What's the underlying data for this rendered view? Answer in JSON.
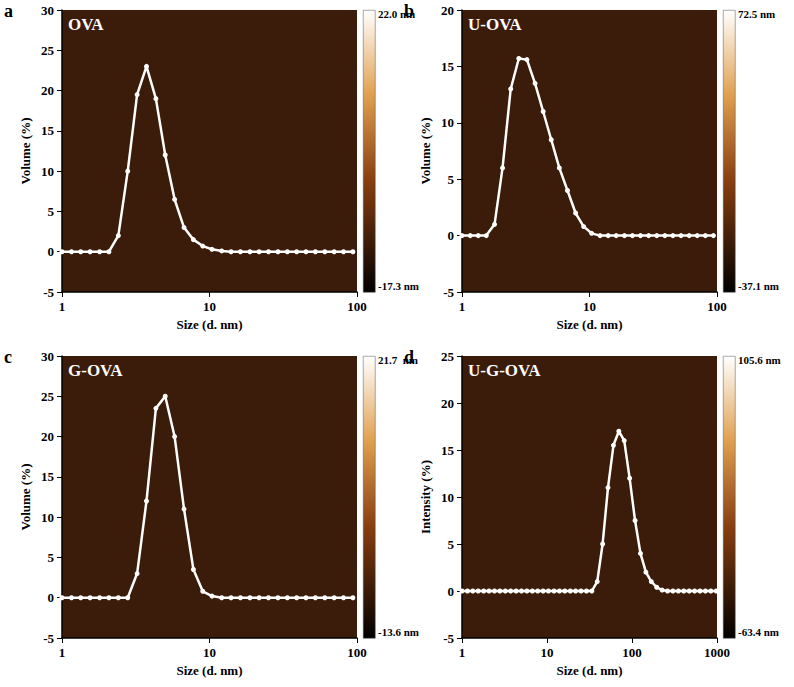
{
  "chart_data": [
    {
      "type": "line",
      "panel": "a",
      "title": "OVA",
      "x_label": "Size (d. nm)",
      "y_label": "Volume (%)",
      "log": "x",
      "grid": false,
      "xlim": [
        1,
        100
      ],
      "xticks": [
        1,
        10,
        100
      ],
      "ylim": [
        -5,
        30
      ],
      "yticks": [
        -5,
        0,
        5,
        10,
        15,
        20,
        25,
        30
      ],
      "x": [
        1.0,
        1.16,
        1.34,
        1.55,
        1.8,
        2.08,
        2.41,
        2.79,
        3.23,
        3.74,
        4.33,
        5.01,
        5.8,
        6.72,
        7.78,
        9.0,
        10.4,
        12.1,
        14.0,
        16.2,
        18.8,
        21.7,
        25.1,
        29.1,
        33.7,
        39.0,
        45.1,
        52.2,
        60.5,
        70.0,
        81.0,
        93.8
      ],
      "series": [
        {
          "color": "#ffffff",
          "marker": "circle",
          "values": [
            0,
            0,
            0,
            0,
            0,
            0,
            2,
            10,
            19.5,
            23,
            19,
            12,
            6.5,
            3,
            1.5,
            0.7,
            0.3,
            0.1,
            0,
            0,
            0,
            0,
            0,
            0,
            0,
            0,
            0,
            0,
            0,
            0,
            0,
            0
          ]
        }
      ],
      "colorbar": {
        "range": [
          -17.3,
          22.0
        ],
        "ticks": [
          {
            "value": 22.0,
            "label": "22.0 nm"
          },
          {
            "value": -17.3,
            "label": "-17.3 nm"
          }
        ]
      }
    },
    {
      "type": "line",
      "panel": "b",
      "title": "U-OVA",
      "x_label": "Size (d. nm)",
      "y_label": "Volume (%)",
      "log": "x",
      "grid": false,
      "xlim": [
        1,
        100
      ],
      "xticks": [
        1,
        10,
        100
      ],
      "ylim": [
        -5,
        20
      ],
      "yticks": [
        -5,
        0,
        5,
        10,
        15,
        20
      ],
      "x": [
        1.0,
        1.16,
        1.34,
        1.55,
        1.8,
        2.08,
        2.41,
        2.79,
        3.23,
        3.74,
        4.33,
        5.01,
        5.8,
        6.72,
        7.78,
        9.0,
        10.4,
        12.1,
        14.0,
        16.2,
        18.8,
        21.7,
        25.1,
        29.1,
        33.7,
        39.0,
        45.1,
        52.2,
        60.5,
        70.0,
        81.0,
        93.8
      ],
      "series": [
        {
          "color": "#ffffff",
          "marker": "circle",
          "values": [
            0,
            0,
            0,
            0,
            1,
            6,
            13,
            15.7,
            15.6,
            13.5,
            11,
            8.5,
            6,
            4,
            2,
            0.8,
            0.2,
            0,
            0,
            0,
            0,
            0,
            0,
            0,
            0,
            0,
            0,
            0,
            0,
            0,
            0,
            0
          ]
        }
      ],
      "colorbar": {
        "range": [
          -37.1,
          72.5
        ],
        "ticks": [
          {
            "value": 72.5,
            "label": "72.5 nm"
          },
          {
            "value": -37.1,
            "label": "-37.1 nm"
          }
        ]
      }
    },
    {
      "type": "line",
      "panel": "c",
      "title": "G-OVA",
      "x_label": "Size (d. nm)",
      "y_label": "Volume (%)",
      "log": "x",
      "grid": false,
      "xlim": [
        1,
        100
      ],
      "xticks": [
        1,
        10,
        100
      ],
      "ylim": [
        -5,
        30
      ],
      "yticks": [
        -5,
        0,
        5,
        10,
        15,
        20,
        25,
        30
      ],
      "x": [
        1.0,
        1.16,
        1.34,
        1.55,
        1.8,
        2.08,
        2.41,
        2.79,
        3.23,
        3.74,
        4.33,
        5.01,
        5.8,
        6.72,
        7.78,
        9.0,
        10.4,
        12.1,
        14.0,
        16.2,
        18.8,
        21.7,
        25.1,
        29.1,
        33.7,
        39.0,
        45.1,
        52.2,
        60.5,
        70.0,
        81.0,
        93.8
      ],
      "series": [
        {
          "color": "#ffffff",
          "marker": "circle",
          "values": [
            0,
            0,
            0,
            0,
            0,
            0,
            0,
            0,
            3,
            12,
            23.5,
            25,
            20,
            11,
            3.5,
            0.8,
            0.2,
            0,
            0,
            0,
            0,
            0,
            0,
            0,
            0,
            0,
            0,
            0,
            0,
            0,
            0,
            0
          ]
        }
      ],
      "colorbar": {
        "range": [
          -13.6,
          21.7
        ],
        "ticks": [
          {
            "value": 21.7,
            "label": "21.7  nm"
          },
          {
            "value": -13.6,
            "label": "-13.6 nm"
          }
        ]
      }
    },
    {
      "type": "line",
      "panel": "d",
      "title": "U-G-OVA",
      "x_label": "Size (d. nm)",
      "y_label": "Intensity (%)",
      "log": "x",
      "grid": false,
      "xlim": [
        1,
        1000
      ],
      "xticks": [
        1,
        10,
        100,
        1000
      ],
      "ylim": [
        -5,
        25
      ],
      "yticks": [
        -5,
        0,
        5,
        10,
        15,
        20,
        25
      ],
      "x": [
        1.0,
        1.16,
        1.34,
        1.55,
        1.8,
        2.08,
        2.41,
        2.79,
        3.23,
        3.74,
        4.33,
        5.01,
        5.8,
        6.72,
        7.78,
        9.0,
        10.4,
        12.1,
        14.0,
        16.2,
        18.8,
        21.7,
        25.1,
        29.1,
        33.7,
        39.0,
        45.1,
        52.2,
        60.5,
        70.0,
        81.0,
        93.8,
        108.6,
        125.8,
        145.7,
        168.7,
        195.3,
        226.2,
        261.9,
        303.3,
        351.2,
        406.6,
        470.8,
        545.2,
        631.3,
        731.0,
        846.5,
        980.0
      ],
      "series": [
        {
          "color": "#ffffff",
          "marker": "circle",
          "values": [
            0,
            0,
            0,
            0,
            0,
            0,
            0,
            0,
            0,
            0,
            0,
            0,
            0,
            0,
            0,
            0,
            0,
            0,
            0,
            0,
            0,
            0,
            0,
            0,
            0,
            1,
            5,
            11,
            15.5,
            17,
            16,
            12,
            7.5,
            4,
            2,
            1,
            0.4,
            0.1,
            0,
            0,
            0,
            0,
            0,
            0,
            0,
            0,
            0,
            0
          ]
        }
      ],
      "colorbar": {
        "range": [
          -63.4,
          105.6
        ],
        "ticks": [
          {
            "value": 105.6,
            "label": "105.6 nm"
          },
          {
            "value": -63.4,
            "label": "-63.4 nm"
          }
        ]
      }
    }
  ]
}
